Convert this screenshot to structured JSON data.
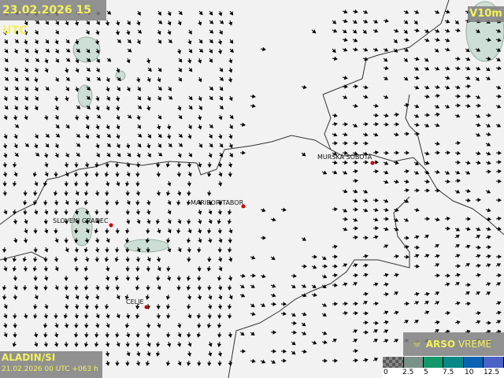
{
  "header": {
    "valid_time": "23.02.2026 15 UTC",
    "variable": "V10m"
  },
  "model": {
    "name": "ALADIN/SI",
    "run": "21.02.2026 00 UTC +063 h"
  },
  "brand": {
    "icon": "sun-logo-icon",
    "bold": "ARSO",
    "light": "VREME"
  },
  "legend": {
    "labels": [
      "0",
      "2.5",
      "5",
      "7.5",
      "10",
      "12.5"
    ],
    "colors": [
      "#5a5a5a",
      "#6a9a86",
      "#12986a",
      "#0a8888",
      "#0a62b2",
      "#4a62c6"
    ]
  },
  "cities": [
    {
      "name": "MURSKA SOBOTA"
    },
    {
      "name": "MARIBOR/TABOR"
    },
    {
      "name": "SLOVENJ GRADEC"
    },
    {
      "name": "CELJE"
    }
  ],
  "colors": {
    "background": "#f2f2f2",
    "border": "#333333",
    "arrows": "#000000",
    "city_dot": "#cc0000",
    "text": "#f4f25a"
  }
}
